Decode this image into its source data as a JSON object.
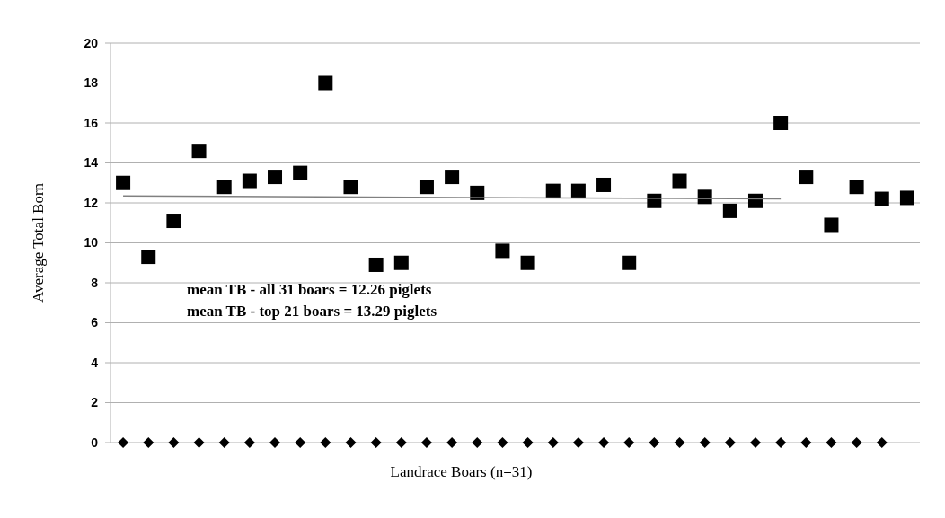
{
  "chart_data": {
    "type": "scatter",
    "xlabel": "Landrace Boars (n=31)",
    "ylabel": "Average Total Born",
    "categories": [
      null,
      null,
      null,
      null,
      null,
      null,
      null,
      null,
      null,
      null,
      null,
      null,
      null,
      null,
      null,
      null,
      null,
      null,
      null,
      null,
      null,
      null,
      null,
      null,
      null,
      null,
      null,
      null,
      null,
      null,
      null,
      null
    ],
    "series": [
      {
        "color": "#000000",
        "marker": "square",
        "values": [
          13.0,
          9.3,
          11.1,
          14.6,
          12.8,
          13.1,
          13.3,
          13.5,
          18.0,
          12.8,
          8.9,
          9.0,
          12.8,
          13.3,
          12.5,
          9.6,
          9.0,
          12.6,
          12.6,
          12.9,
          9.0,
          12.1,
          13.1,
          12.3,
          11.6,
          12.1,
          16.0,
          13.3,
          10.9,
          12.8,
          12.2,
          12.25
        ]
      },
      {
        "color": "#000000",
        "marker": "diamond",
        "values": [
          0,
          0,
          0,
          0,
          0,
          0,
          0,
          0,
          0,
          0,
          0,
          0,
          0,
          0,
          0,
          0,
          0,
          0,
          0,
          0,
          0,
          0,
          0,
          0,
          0,
          0,
          0,
          0,
          0,
          0,
          0,
          null
        ]
      },
      {
        "type": "line",
        "color": "#808080",
        "marker": "none",
        "values": [
          12.35,
          null,
          null,
          null,
          null,
          null,
          null,
          null,
          null,
          null,
          null,
          null,
          null,
          null,
          null,
          null,
          null,
          null,
          null,
          null,
          null,
          null,
          null,
          null,
          null,
          null,
          12.2,
          null,
          null,
          null,
          null,
          null
        ]
      }
    ],
    "ylim": [
      0,
      20
    ],
    "yticks": [
      0,
      2,
      4,
      6,
      8,
      10,
      12,
      14,
      16,
      18,
      20
    ],
    "grid": "y",
    "annotations": [
      "mean TB - all 31 boars = 12.26 piglets",
      "mean TB - top 21 boars = 13.29 piglets"
    ]
  }
}
